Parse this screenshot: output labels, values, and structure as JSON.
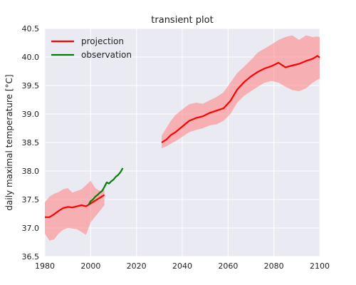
{
  "chart_data": {
    "type": "line",
    "title": "transient plot",
    "xlabel": "",
    "ylabel": "daily maximal temperature [°C]",
    "xlim": [
      1980,
      2100
    ],
    "ylim": [
      36.5,
      40.5
    ],
    "x_ticks": [
      "1980",
      "2000",
      "2020",
      "2040",
      "2060",
      "2080",
      "2100"
    ],
    "y_ticks": [
      "36.5",
      "37.0",
      "37.5",
      "38.0",
      "38.5",
      "39.0",
      "39.5",
      "40.0",
      "40.5"
    ],
    "grid": true,
    "legend_position": "top-left",
    "series": [
      {
        "name": "projection",
        "color": "#ff0000",
        "segments": [
          {
            "x": [
              1980,
              1982,
              1984,
              1986,
              1988,
              1990,
              1992,
              1994,
              1996,
              1998,
              2000,
              2002,
              2004,
              2006
            ],
            "y": [
              37.19,
              37.19,
              37.24,
              37.3,
              37.35,
              37.37,
              37.36,
              37.38,
              37.4,
              37.38,
              37.43,
              37.48,
              37.53,
              37.58
            ],
            "lo": [
              36.9,
              36.78,
              36.8,
              36.9,
              36.97,
              37.0,
              36.99,
              36.98,
              36.93,
              36.88,
              37.1,
              37.2,
              37.3,
              37.4
            ],
            "hi": [
              37.45,
              37.55,
              37.6,
              37.63,
              37.68,
              37.7,
              37.62,
              37.65,
              37.68,
              37.75,
              37.83,
              37.7,
              37.65,
              37.68
            ]
          },
          {
            "x": [
              2031,
              2033,
              2035,
              2037,
              2040,
              2043,
              2046,
              2049,
              2052,
              2055,
              2058,
              2061,
              2064,
              2067,
              2070,
              2073,
              2076,
              2079,
              2082,
              2085,
              2088,
              2091,
              2094,
              2097,
              2099,
              2100
            ],
            "y": [
              38.5,
              38.55,
              38.63,
              38.68,
              38.78,
              38.88,
              38.93,
              38.96,
              39.02,
              39.06,
              39.1,
              39.23,
              39.43,
              39.56,
              39.66,
              39.74,
              39.8,
              39.84,
              39.9,
              39.82,
              39.85,
              39.88,
              39.93,
              39.97,
              40.02,
              39.99
            ],
            "lo": [
              38.4,
              38.43,
              38.48,
              38.52,
              38.6,
              38.68,
              38.72,
              38.75,
              38.8,
              38.82,
              38.88,
              39.0,
              39.2,
              39.32,
              39.4,
              39.48,
              39.55,
              39.58,
              39.55,
              39.48,
              39.42,
              39.4,
              39.45,
              39.55,
              39.6,
              39.62
            ],
            "hi": [
              38.62,
              38.75,
              38.88,
              38.98,
              39.08,
              39.17,
              39.2,
              39.18,
              39.24,
              39.3,
              39.38,
              39.55,
              39.72,
              39.83,
              39.95,
              40.08,
              40.15,
              40.22,
              40.3,
              40.35,
              40.38,
              40.3,
              40.38,
              40.35,
              40.36,
              40.35
            ]
          }
        ]
      },
      {
        "name": "observation",
        "color": "#008000",
        "x": [
          1999,
          2000,
          2001,
          2002,
          2003,
          2004,
          2005,
          2006,
          2007,
          2008,
          2009,
          2010,
          2011,
          2012,
          2013,
          2014
        ],
        "y": [
          37.4,
          37.47,
          37.5,
          37.55,
          37.58,
          37.62,
          37.65,
          37.72,
          37.8,
          37.78,
          37.82,
          37.85,
          37.9,
          37.93,
          37.98,
          38.05
        ]
      }
    ]
  }
}
